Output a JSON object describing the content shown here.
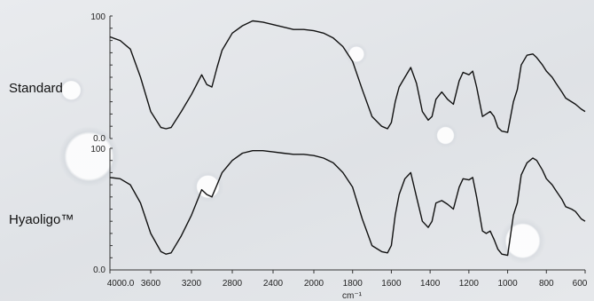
{
  "chart_data": [
    {
      "type": "line",
      "row_label": "Standard",
      "xlabel": "cm⁻¹",
      "xlim": [
        4000,
        600
      ],
      "ylim": [
        0,
        100
      ],
      "y_tick_labels": [
        "100",
        "0.0"
      ],
      "x_tick_labels": [
        "4000.0",
        "3600",
        "3200",
        "2800",
        "2400",
        "2000",
        "1800",
        "1600",
        "1400",
        "1200",
        "1000",
        "800",
        "600"
      ],
      "series": [
        {
          "x": [
            4000,
            3900,
            3800,
            3700,
            3600,
            3500,
            3450,
            3400,
            3300,
            3200,
            3100,
            3050,
            3000,
            2950,
            2900,
            2800,
            2700,
            2600,
            2500,
            2400,
            2300,
            2200,
            2100,
            2000,
            1950,
            1900,
            1850,
            1800,
            1750,
            1700,
            1650,
            1620,
            1600,
            1580,
            1560,
            1530,
            1500,
            1470,
            1440,
            1410,
            1390,
            1370,
            1340,
            1310,
            1280,
            1250,
            1230,
            1200,
            1180,
            1160,
            1130,
            1110,
            1090,
            1070,
            1050,
            1030,
            1000,
            970,
            950,
            930,
            900,
            870,
            850,
            820,
            800,
            770,
            750,
            720,
            700,
            670,
            650,
            620,
            600
          ],
          "y": [
            83,
            80,
            73,
            50,
            22,
            9,
            8,
            9,
            22,
            36,
            52,
            44,
            42,
            58,
            72,
            86,
            92,
            96,
            95,
            93,
            91,
            89,
            89,
            88,
            86,
            82,
            75,
            63,
            40,
            18,
            10,
            8,
            13,
            30,
            42,
            50,
            58,
            45,
            22,
            15,
            18,
            32,
            38,
            32,
            28,
            47,
            54,
            52,
            55,
            42,
            18,
            20,
            22,
            18,
            9,
            6,
            5,
            30,
            40,
            60,
            68,
            69,
            66,
            60,
            55,
            50,
            45,
            38,
            33,
            30,
            28,
            24,
            22
          ]
        }
      ]
    },
    {
      "type": "line",
      "row_label": "Hyaoligo™",
      "xlabel": "cm⁻¹",
      "xlim": [
        4000,
        600
      ],
      "ylim": [
        0,
        100
      ],
      "y_tick_labels": [
        "100",
        "0.0"
      ],
      "x_tick_labels": [
        "4000.0",
        "3600",
        "3200",
        "2800",
        "2400",
        "2000",
        "1800",
        "1600",
        "1400",
        "1200",
        "1000",
        "800",
        "600"
      ],
      "series": [
        {
          "x": [
            4000,
            3900,
            3800,
            3700,
            3600,
            3500,
            3450,
            3400,
            3300,
            3200,
            3100,
            3050,
            3000,
            2950,
            2900,
            2800,
            2700,
            2600,
            2500,
            2400,
            2300,
            2200,
            2100,
            2000,
            1950,
            1900,
            1850,
            1800,
            1750,
            1700,
            1650,
            1620,
            1600,
            1580,
            1560,
            1530,
            1500,
            1470,
            1440,
            1410,
            1390,
            1370,
            1340,
            1310,
            1280,
            1250,
            1230,
            1200,
            1180,
            1160,
            1130,
            1110,
            1090,
            1070,
            1050,
            1030,
            1000,
            970,
            950,
            930,
            900,
            870,
            850,
            820,
            800,
            770,
            750,
            720,
            700,
            670,
            650,
            620,
            600
          ],
          "y": [
            76,
            75,
            70,
            55,
            30,
            15,
            13,
            14,
            28,
            45,
            66,
            62,
            60,
            70,
            80,
            90,
            96,
            98,
            98,
            97,
            96,
            95,
            95,
            94,
            92,
            88,
            80,
            68,
            42,
            20,
            15,
            14,
            20,
            45,
            62,
            75,
            80,
            60,
            40,
            35,
            40,
            55,
            57,
            54,
            50,
            68,
            75,
            74,
            76,
            60,
            32,
            30,
            32,
            25,
            17,
            13,
            12,
            45,
            55,
            78,
            88,
            92,
            90,
            82,
            75,
            70,
            65,
            58,
            52,
            50,
            48,
            42,
            40
          ]
        }
      ]
    }
  ]
}
